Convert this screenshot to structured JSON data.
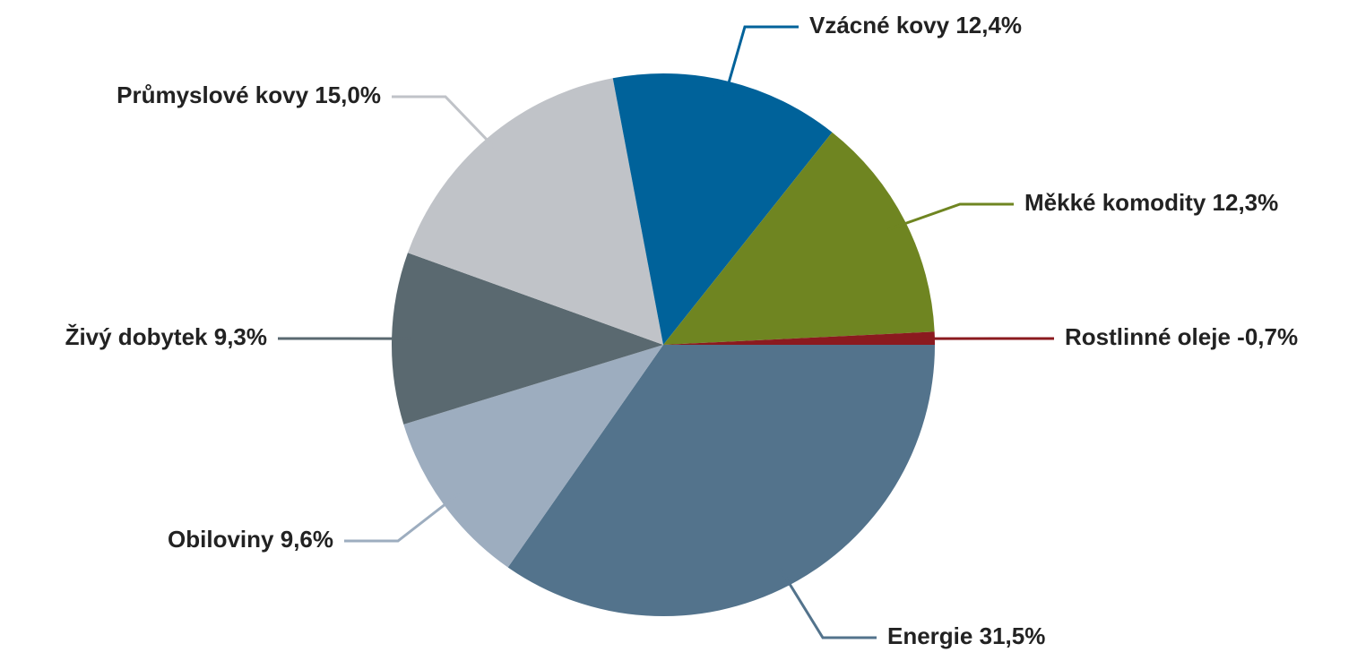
{
  "chart_data": {
    "type": "pie",
    "categories": [
      "Energie",
      "Obiloviny",
      "Živý dobytek",
      "Průmyslové kovy",
      "Vzácné kovy",
      "Měkké komodity",
      "Rostlinné oleje"
    ],
    "values": [
      31.5,
      9.6,
      9.3,
      15.0,
      12.4,
      12.3,
      -0.7
    ],
    "value_labels": [
      "31,5%",
      "9,6%",
      "9,3%",
      "15,0%",
      "12,4%",
      "12,3%",
      "-0,7%"
    ],
    "colors": [
      "#53738c",
      "#9dadbf",
      "#5a6970",
      "#c0c3c8",
      "#00629a",
      "#6f8521",
      "#8b1a1f"
    ]
  }
}
